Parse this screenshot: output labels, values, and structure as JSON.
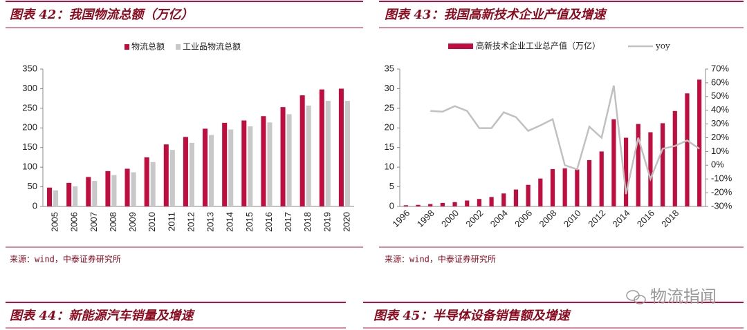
{
  "chart_data": [
    {
      "type": "bar",
      "figure_title": "图表 42：我国物流总额（万亿）",
      "source": "来源：wind，中泰证券研究所",
      "categories": [
        "2005",
        "2006",
        "2007",
        "2008",
        "2009",
        "2010",
        "2011",
        "2012",
        "2013",
        "2014",
        "2015",
        "2016",
        "2017",
        "2018",
        "2019",
        "2020"
      ],
      "series": [
        {
          "name": "物流总额",
          "color": "#c00c3f",
          "values": [
            48,
            60,
            75,
            90,
            96,
            125,
            158,
            177,
            198,
            213,
            219,
            230,
            253,
            283,
            298,
            300
          ]
        },
        {
          "name": "工业品物流总额",
          "color": "#c8c8c8",
          "values": [
            41,
            51,
            65,
            80,
            87,
            113,
            144,
            162,
            182,
            196,
            204,
            214,
            235,
            257,
            269,
            269
          ]
        }
      ],
      "ylim": [
        0,
        350
      ],
      "yticks": [
        0,
        50,
        100,
        150,
        200,
        250,
        300,
        350
      ],
      "legend": "top"
    },
    {
      "type": "bar_line",
      "figure_title": "图表 43：我国高新技术企业产值及增速",
      "source": "来源：wind，中泰证券研究所",
      "categories": [
        "1996",
        null,
        "1998",
        null,
        "2000",
        null,
        "2002",
        null,
        "2004",
        null,
        "2006",
        null,
        "2008",
        null,
        "2010",
        null,
        "2012",
        null,
        "2014",
        null,
        "2016",
        null,
        "2018",
        null,
        null
      ],
      "series": [
        {
          "name": "高新技术企业工业总产值（万亿）",
          "color": "#c00c3f",
          "values": [
            0.3,
            0.4,
            0.6,
            0.9,
            1.1,
            1.5,
            1.9,
            2.4,
            3.3,
            4.3,
            5.5,
            7.1,
            9.5,
            9.7,
            9.4,
            11.8,
            14.0,
            22.2,
            17.5,
            21.0,
            18.9,
            21.2,
            24.3,
            28.8,
            32.3
          ]
        },
        {
          "name": "yoy",
          "color": "#c0c0c0",
          "axis": "y2",
          "values": [
            null,
            null,
            39.5,
            39,
            43,
            39.5,
            27,
            27,
            38.5,
            35,
            25,
            29,
            33.5,
            0,
            -3,
            28,
            20,
            58,
            -21,
            20,
            -10,
            12,
            14,
            18,
            12
          ]
        }
      ],
      "ylim": [
        0,
        35
      ],
      "yticks": [
        0,
        5,
        10,
        15,
        20,
        25,
        30,
        35
      ],
      "y2lim": [
        -30,
        70
      ],
      "y2ticks": [
        {
          "value": -30,
          "label": "-30%"
        },
        {
          "value": -20,
          "label": "-20%"
        },
        {
          "value": -10,
          "label": "-10%"
        },
        {
          "value": 0,
          "label": "0%"
        },
        {
          "value": 10,
          "label": "10%"
        },
        {
          "value": 20,
          "label": "20%"
        },
        {
          "value": 30,
          "label": "30%"
        },
        {
          "value": 40,
          "label": "40%"
        },
        {
          "value": 50,
          "label": "50%"
        },
        {
          "value": 60,
          "label": "60%"
        },
        {
          "value": 70,
          "label": "70%"
        }
      ],
      "legend": "top"
    }
  ],
  "next_figures": [
    "图表 44：新能源汽车销量及增速",
    "图表 45：半导体设备销售额及增速"
  ],
  "watermark": "物流指闻"
}
